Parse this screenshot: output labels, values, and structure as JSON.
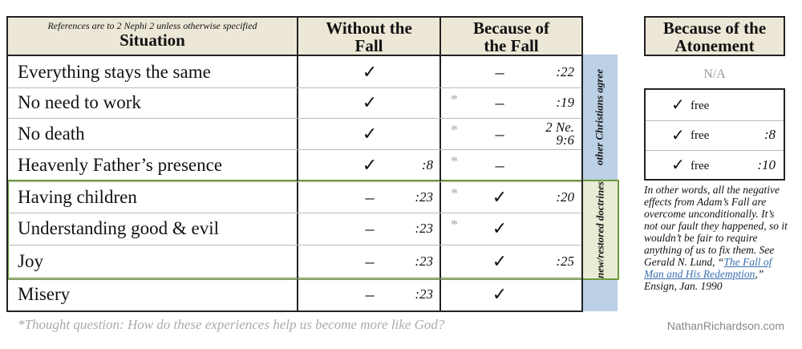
{
  "header": {
    "note": "References are to 2 Nephi 2 unless otherwise specified",
    "situation": "Situation",
    "without": "Without the Fall",
    "because": "Because of the Fall"
  },
  "rows": [
    {
      "situation": "Everything stays the same",
      "without_mark": "✓",
      "because_mark": "–",
      "because_ref": ":22"
    },
    {
      "situation": "No need to work",
      "without_mark": "✓",
      "star": "*",
      "because_mark": "–",
      "because_ref": ":19"
    },
    {
      "situation": "No death",
      "without_mark": "✓",
      "star": "*",
      "because_mark": "–",
      "because_ref": "2 Ne. 9:6"
    },
    {
      "situation": "Heavenly Father’s presence",
      "without_mark": "✓",
      "without_ref": ":8",
      "star": "*",
      "because_mark": "–"
    },
    {
      "situation": "Having children",
      "without_mark": "–",
      "without_ref": ":23",
      "star": "*",
      "because_mark": "✓",
      "because_ref": ":20"
    },
    {
      "situation": "Understanding good & evil",
      "without_mark": "–",
      "without_ref": ":23",
      "star": "*",
      "because_mark": "✓"
    },
    {
      "situation": "Joy",
      "without_mark": "–",
      "without_ref": ":23",
      "because_mark": "✓",
      "because_ref": ":25"
    },
    {
      "situation": "Misery",
      "without_mark": "–",
      "without_ref": ":23",
      "because_mark": "✓"
    }
  ],
  "side": {
    "christians": "other Christians agree",
    "restored": "new/restored doctrines"
  },
  "atonement": {
    "title": "Because of the Atonement",
    "na": "N/A",
    "rows": [
      {
        "mark": "✓",
        "text": "free"
      },
      {
        "mark": "✓",
        "text": "free",
        "ref": ":8"
      },
      {
        "mark": "✓",
        "text": "free",
        "ref": ":10"
      }
    ],
    "note_before": "In other words, all the negative effects from Adam’s Fall are overcome unconditionally. It’s not our fault they happened, so it wouldn’t be fair to require anything of us to fix them. See Gerald N. Lund, “",
    "note_link": "The Fall of Man and His Redemption",
    "note_after": ",” Ensign, Jan. 1990"
  },
  "footer": {
    "question": "*Thought question: How do these experiences help us become more like God?",
    "site": "NathanRichardson.com"
  }
}
